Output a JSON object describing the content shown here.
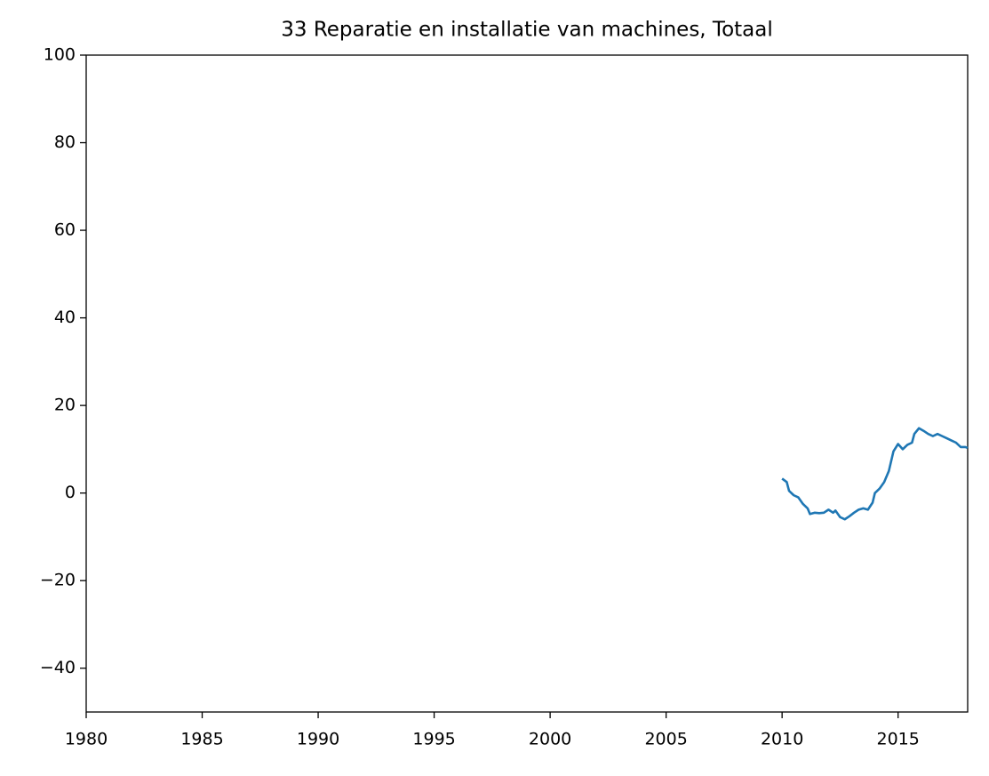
{
  "chart_data": {
    "type": "line",
    "title": "33 Reparatie en installatie van machines, Totaal",
    "series": [
      {
        "name": "33 Reparatie en installatie van machines, Totaal",
        "color": "#1f77b4",
        "x": [
          2010.0,
          2010.2,
          2010.3,
          2010.5,
          2010.7,
          2010.9,
          2011.1,
          2011.2,
          2011.4,
          2011.6,
          2011.8,
          2012.0,
          2012.2,
          2012.3,
          2012.5,
          2012.7,
          2012.9,
          2013.1,
          2013.3,
          2013.5,
          2013.7,
          2013.9,
          2014.0,
          2014.2,
          2014.4,
          2014.6,
          2014.8,
          2015.0,
          2015.2,
          2015.4,
          2015.6,
          2015.7,
          2015.9,
          2016.1,
          2016.3,
          2016.5,
          2016.7,
          2016.9,
          2017.1,
          2017.3,
          2017.5,
          2017.7,
          2017.9,
          2018.0
        ],
        "values": [
          3.3,
          2.5,
          0.5,
          -0.5,
          -1,
          -2.5,
          -3.5,
          -4.8,
          -4.5,
          -4.6,
          -4.5,
          -3.8,
          -4.5,
          -4,
          -5.5,
          -6,
          -5.3,
          -4.5,
          -3.8,
          -3.5,
          -3.8,
          -2.2,
          0,
          1,
          2.5,
          5,
          9.5,
          11.2,
          10,
          11,
          11.5,
          13.5,
          14.8,
          14.2,
          13.5,
          13,
          13.5,
          13,
          12.5,
          12,
          11.5,
          10.5,
          10.5,
          10.3
        ]
      }
    ],
    "xlim": [
      1980,
      2018
    ],
    "xticks": [
      1980,
      1985,
      1990,
      1995,
      2000,
      2005,
      2010,
      2015
    ],
    "ylim": [
      -50,
      100
    ],
    "yticks": [
      {
        "value": -40,
        "label": "−40"
      },
      {
        "value": -20,
        "label": "−20"
      },
      0,
      20,
      40,
      60,
      80,
      100
    ],
    "grid": false
  }
}
